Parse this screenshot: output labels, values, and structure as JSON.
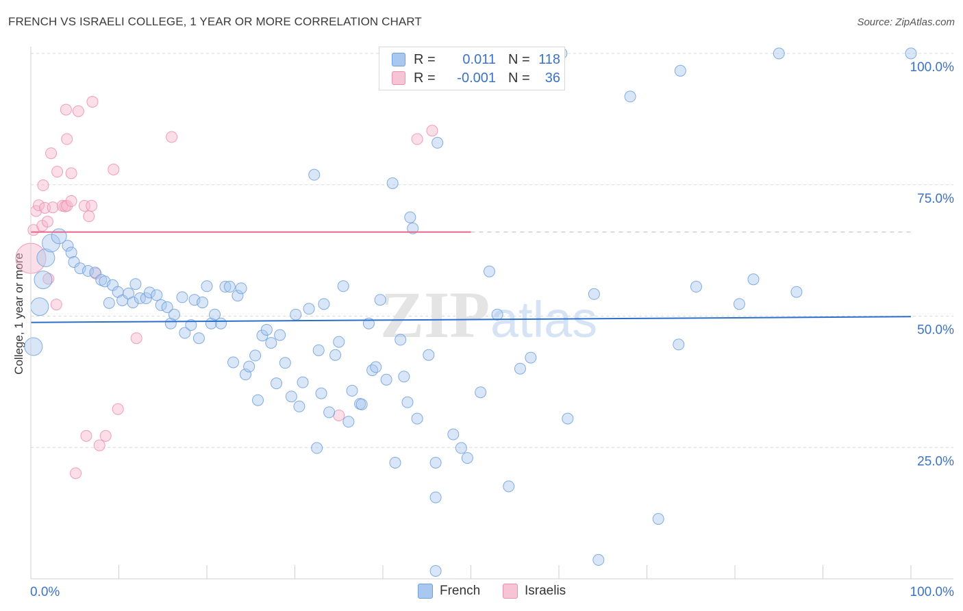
{
  "header": {
    "title": "FRENCH VS ISRAELI COLLEGE, 1 YEAR OR MORE CORRELATION CHART",
    "source": "Source: ZipAtlas.com"
  },
  "legend": {
    "french": {
      "r_label": "R =",
      "r_value": "0.011",
      "n_label": "N =",
      "n_value": "118"
    },
    "israelis": {
      "r_label": "R =",
      "r_value": "-0.001",
      "n_label": "N =",
      "n_value": "36"
    }
  },
  "bottom_legend": {
    "french": "French",
    "israelis": "Israelis"
  },
  "watermark": {
    "zip": "ZIP",
    "atlas": "atlas"
  },
  "colors": {
    "french_fill": "#a9c8f0",
    "french_stroke": "#6f9fdc",
    "french_line": "#2b6fce",
    "israelis_fill": "#f7b6cb",
    "israelis_stroke": "#ee8fae",
    "israelis_line": "#e8678f",
    "axis_text": "#3a73c8",
    "grid": "#d9d9d9"
  },
  "chart_data": {
    "type": "scatter",
    "title": "FRENCH VS ISRAELI COLLEGE, 1 YEAR OR MORE CORRELATION CHART",
    "xlabel": "",
    "ylabel": "College, 1 year or more",
    "xlim": [
      0,
      100
    ],
    "ylim": [
      0,
      100
    ],
    "x_tick_labels": [
      "0.0%",
      "100.0%"
    ],
    "y_tick_labels": [
      "100.0%",
      "75.0%",
      "50.0%",
      "25.0%"
    ],
    "y_ticks": [
      100,
      75,
      50,
      25
    ],
    "grid": true,
    "legend_position": "top-center",
    "series": [
      {
        "name": "French",
        "r": 0.011,
        "n": 118,
        "trend": {
          "x0": 0,
          "y0": 48.8,
          "x1": 100,
          "y1": 49.9
        },
        "points": [
          [
            0.3,
            44.2,
            3
          ],
          [
            1.0,
            51.8,
            3
          ],
          [
            1.4,
            56.9,
            3
          ],
          [
            1.7,
            61.1,
            3
          ],
          [
            2.3,
            63.9,
            3
          ],
          [
            3.2,
            65.2,
            2
          ],
          [
            4.2,
            63.4,
            1
          ],
          [
            4.6,
            62.1,
            1
          ],
          [
            4.9,
            60.3,
            1
          ],
          [
            5.6,
            59.1,
            1
          ],
          [
            6.5,
            58.6,
            1
          ],
          [
            7.3,
            58.3,
            1
          ],
          [
            8.0,
            56.9,
            1
          ],
          [
            8.4,
            56.6,
            1
          ],
          [
            8.9,
            52.5,
            1
          ],
          [
            9.3,
            55.9,
            1
          ],
          [
            9.9,
            54.6,
            1
          ],
          [
            10.4,
            53.0,
            1
          ],
          [
            11.1,
            54.3,
            1
          ],
          [
            11.6,
            52.6,
            1
          ],
          [
            11.9,
            56.1,
            1
          ],
          [
            12.4,
            53.4,
            1
          ],
          [
            13.1,
            53.4,
            1
          ],
          [
            13.5,
            54.5,
            1
          ],
          [
            14.3,
            54.0,
            1
          ],
          [
            14.8,
            52.1,
            1
          ],
          [
            15.5,
            51.7,
            1
          ],
          [
            15.9,
            48.6,
            1
          ],
          [
            16.3,
            50.3,
            1
          ],
          [
            17.2,
            53.6,
            1
          ],
          [
            17.5,
            46.8,
            1
          ],
          [
            18.2,
            48.3,
            1
          ],
          [
            18.6,
            53.1,
            1
          ],
          [
            19.1,
            45.8,
            1
          ],
          [
            19.5,
            52.6,
            1
          ],
          [
            20.0,
            55.7,
            1
          ],
          [
            20.5,
            48.6,
            1
          ],
          [
            20.9,
            50.3,
            1
          ],
          [
            21.6,
            48.6,
            1
          ],
          [
            22.1,
            55.6,
            1
          ],
          [
            22.6,
            55.6,
            1
          ],
          [
            23.0,
            41.2,
            1
          ],
          [
            23.5,
            53.9,
            1
          ],
          [
            23.9,
            55.3,
            1
          ],
          [
            24.4,
            38.9,
            1
          ],
          [
            24.8,
            40.4,
            1
          ],
          [
            25.5,
            42.5,
            1
          ],
          [
            25.8,
            34.0,
            1
          ],
          [
            26.3,
            46.3,
            1
          ],
          [
            26.8,
            47.4,
            1
          ],
          [
            27.3,
            44.9,
            1
          ],
          [
            27.9,
            37.2,
            1
          ],
          [
            28.3,
            46.4,
            1
          ],
          [
            28.9,
            41.1,
            1
          ],
          [
            29.6,
            34.7,
            1
          ],
          [
            30.1,
            50.3,
            1
          ],
          [
            30.5,
            32.8,
            1
          ],
          [
            30.9,
            37.4,
            1
          ],
          [
            31.6,
            51.4,
            1
          ],
          [
            32.2,
            76.9,
            1
          ],
          [
            32.5,
            24.9,
            1
          ],
          [
            32.7,
            43.5,
            1
          ],
          [
            33.0,
            35.3,
            1
          ],
          [
            33.3,
            52.3,
            1
          ],
          [
            33.9,
            31.7,
            1
          ],
          [
            34.6,
            42.6,
            1
          ],
          [
            35.0,
            45.1,
            1
          ],
          [
            35.5,
            55.7,
            1
          ],
          [
            36.1,
            29.9,
            1
          ],
          [
            36.5,
            35.8,
            1
          ],
          [
            37.4,
            33.3,
            1
          ],
          [
            37.6,
            33.2,
            1
          ],
          [
            38.4,
            48.6,
            1
          ],
          [
            38.8,
            39.7,
            1
          ],
          [
            39.2,
            40.3,
            1
          ],
          [
            39.7,
            53.1,
            1
          ],
          [
            40.4,
            37.9,
            1
          ],
          [
            41.1,
            75.3,
            1
          ],
          [
            41.4,
            22.1,
            1
          ],
          [
            42.0,
            45.5,
            1
          ],
          [
            42.4,
            38.5,
            1
          ],
          [
            42.8,
            33.6,
            1
          ],
          [
            43.1,
            68.8,
            1
          ],
          [
            43.4,
            66.7,
            1
          ],
          [
            43.9,
            30.5,
            1
          ],
          [
            45.2,
            42.6,
            1
          ],
          [
            46.2,
            83.0,
            1
          ],
          [
            46.0,
            22.1,
            1
          ],
          [
            46.0,
            15.5,
            1
          ],
          [
            46.0,
            1.5,
            1
          ],
          [
            48.0,
            27.5,
            1
          ],
          [
            48.9,
            24.9,
            1
          ],
          [
            49.6,
            23.0,
            1
          ],
          [
            51.1,
            35.5,
            1
          ],
          [
            52.1,
            58.5,
            1
          ],
          [
            53.0,
            50.3,
            1
          ],
          [
            54.3,
            17.6,
            1
          ],
          [
            55.6,
            40.0,
            1
          ],
          [
            56.8,
            42.1,
            1
          ],
          [
            60.3,
            100.0,
            1
          ],
          [
            61.0,
            30.5,
            1
          ],
          [
            64.0,
            54.2,
            1
          ],
          [
            64.5,
            3.6,
            1
          ],
          [
            68.1,
            91.8,
            1
          ],
          [
            71.3,
            11.4,
            1
          ],
          [
            73.8,
            96.7,
            1
          ],
          [
            73.6,
            44.6,
            1
          ],
          [
            75.6,
            55.6,
            1
          ],
          [
            80.5,
            52.3,
            1
          ],
          [
            82.1,
            57.0,
            1
          ],
          [
            85.0,
            100.0,
            1
          ],
          [
            87.0,
            54.6,
            1
          ],
          [
            100.0,
            100.0,
            1
          ]
        ]
      },
      {
        "name": "Israelis",
        "r": -0.001,
        "n": 36,
        "trend": {
          "x0": 0,
          "y0": 66.0,
          "x1": 50,
          "y1": 66.0,
          "dashed_to": 100
        },
        "points": [
          [
            0.0,
            61.0,
            4
          ],
          [
            0.3,
            66.4,
            1
          ],
          [
            0.6,
            70.0,
            1
          ],
          [
            0.9,
            71.1,
            1
          ],
          [
            1.3,
            67.2,
            1
          ],
          [
            1.4,
            74.9,
            1
          ],
          [
            1.6,
            70.6,
            1
          ],
          [
            1.9,
            68.0,
            1
          ],
          [
            2.0,
            57.1,
            1
          ],
          [
            2.3,
            81.0,
            1
          ],
          [
            2.5,
            70.7,
            1
          ],
          [
            2.9,
            52.2,
            1
          ],
          [
            3.0,
            77.5,
            1
          ],
          [
            3.6,
            71.0,
            1
          ],
          [
            3.9,
            70.9,
            1
          ],
          [
            4.1,
            71.0,
            1
          ],
          [
            4.0,
            89.3,
            1
          ],
          [
            4.1,
            83.7,
            1
          ],
          [
            4.6,
            71.9,
            1
          ],
          [
            4.6,
            77.2,
            1
          ],
          [
            5.1,
            20.1,
            1
          ],
          [
            5.4,
            89.0,
            1
          ],
          [
            6.1,
            71.0,
            1
          ],
          [
            6.3,
            27.2,
            1
          ],
          [
            6.6,
            69.0,
            1
          ],
          [
            6.9,
            71.0,
            1
          ],
          [
            7.0,
            90.8,
            1
          ],
          [
            7.4,
            58.1,
            1
          ],
          [
            7.8,
            25.4,
            1
          ],
          [
            8.5,
            27.2,
            1
          ],
          [
            9.4,
            77.9,
            1
          ],
          [
            9.9,
            32.3,
            1
          ],
          [
            12.0,
            45.8,
            1
          ],
          [
            16.0,
            84.1,
            1
          ],
          [
            35.0,
            31.1,
            1
          ],
          [
            43.9,
            83.7,
            1
          ],
          [
            45.6,
            85.3,
            1
          ]
        ]
      }
    ]
  }
}
